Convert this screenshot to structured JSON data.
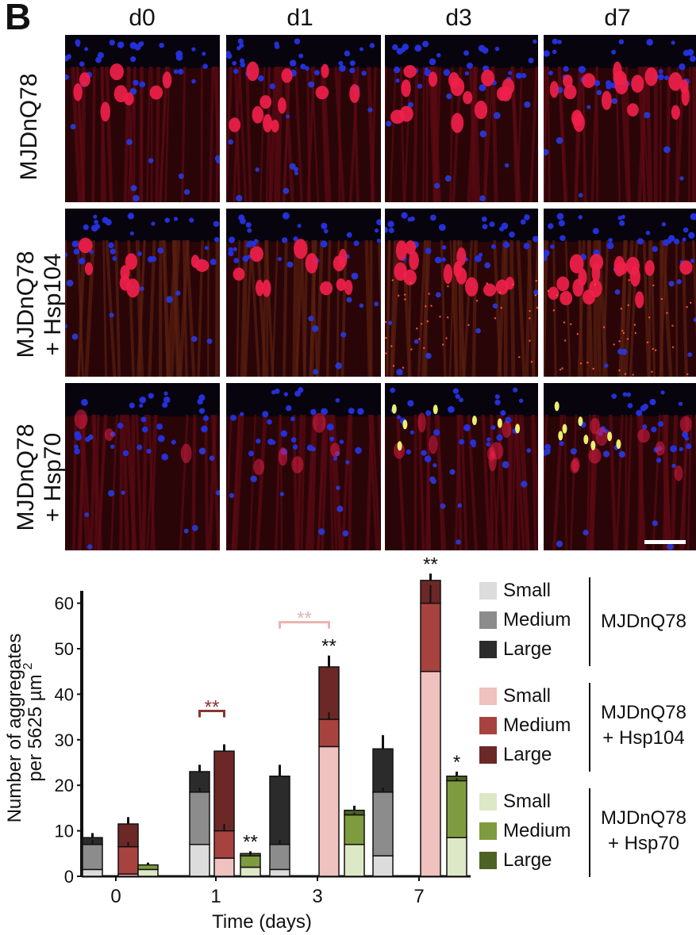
{
  "panel_label": "B",
  "columns": [
    "d0",
    "d1",
    "d3",
    "d7"
  ],
  "rows": [
    {
      "line1": "MJDnQ78",
      "line2": ""
    },
    {
      "line1": "MJDnQ78",
      "line2": "+ Hsp104"
    },
    {
      "line1": "MJDnQ78",
      "line2": "+ Hsp70"
    }
  ],
  "legend": {
    "groups": [
      {
        "label1": "MJDnQ78",
        "label2": "",
        "items": [
          {
            "label": "Small",
            "color": "#dcdcdc"
          },
          {
            "label": "Medium",
            "color": "#8c8c8c"
          },
          {
            "label": "Large",
            "color": "#2b2b2b"
          }
        ]
      },
      {
        "label1": "MJDnQ78",
        "label2": "+ Hsp104",
        "items": [
          {
            "label": "Small",
            "color": "#efc1bf"
          },
          {
            "label": "Medium",
            "color": "#a8423f"
          },
          {
            "label": "Large",
            "color": "#6b2826"
          }
        ]
      },
      {
        "label1": "MJDnQ78",
        "label2": "+ Hsp70",
        "items": [
          {
            "label": "Small",
            "color": "#dde8c6"
          },
          {
            "label": "Medium",
            "color": "#7f9b3f"
          },
          {
            "label": "Large",
            "color": "#4d6325"
          }
        ]
      }
    ]
  },
  "chart_data": {
    "type": "bar",
    "stacked": true,
    "xlabel": "Time (days)",
    "ylabel_line1": "Number of aggregates",
    "ylabel_line2": "per 5625 µm",
    "ylabel_sup": "2",
    "ylim": [
      0,
      70
    ],
    "yticks": [
      0,
      10,
      20,
      30,
      40,
      50,
      60
    ],
    "categories": [
      "0",
      "1",
      "3",
      "7"
    ],
    "groups": [
      {
        "condition": "MJDnQ78",
        "colors": [
          "#dcdcdc",
          "#8c8c8c",
          "#2b2b2b"
        ],
        "small": [
          1.5,
          7,
          1.5,
          4.5
        ],
        "medium": [
          5.5,
          11.5,
          5.5,
          14
        ],
        "large": [
          1.5,
          4.5,
          15,
          9.5
        ],
        "total_err": [
          1,
          1.5,
          2.5,
          3
        ],
        "mid_err": [
          1,
          1,
          1,
          1
        ]
      },
      {
        "condition": "MJDnQ78 + Hsp104",
        "colors": [
          "#efc1bf",
          "#a8423f",
          "#6b2826"
        ],
        "small": [
          0.5,
          4,
          28.5,
          45
        ],
        "medium": [
          6,
          6,
          6,
          15
        ],
        "large": [
          5,
          17.5,
          11.5,
          5
        ],
        "total_err": [
          1.5,
          1.5,
          2.5,
          1.5
        ],
        "mid_err": [
          1,
          1.5,
          1.5,
          4
        ]
      },
      {
        "condition": "MJDnQ78 + Hsp70",
        "colors": [
          "#dde8c6",
          "#7f9b3f",
          "#4d6325"
        ],
        "small": [
          1.5,
          2,
          7,
          8.5
        ],
        "medium": [
          1,
          2.5,
          6.5,
          12.5
        ],
        "large": [
          0,
          0.5,
          1,
          1
        ],
        "total_err": [
          0.5,
          0.5,
          1,
          1
        ],
        "mid_err": [
          0.5,
          0.5,
          0.5,
          0.5
        ]
      }
    ],
    "significance": [
      {
        "category": "1",
        "group": 1,
        "text": "**",
        "color": "#8b3431",
        "bracket": true
      },
      {
        "category": "1",
        "group": 2,
        "text": "**",
        "color": "#111111",
        "bracket": false
      },
      {
        "category": "3",
        "group": 1,
        "text": "**",
        "color": "#e8b3b1",
        "bracket": true
      },
      {
        "category": "3",
        "group": 1,
        "text": "**",
        "color": "#111111",
        "bracket": false
      },
      {
        "category": "7",
        "group": 1,
        "text": "***",
        "color": "#e8b3b1",
        "bracket": true
      },
      {
        "category": "7",
        "group": 1,
        "text": "**",
        "color": "#111111",
        "bracket": false
      },
      {
        "category": "7",
        "group": 2,
        "text": "*",
        "color": "#111111",
        "bracket": false
      }
    ]
  }
}
